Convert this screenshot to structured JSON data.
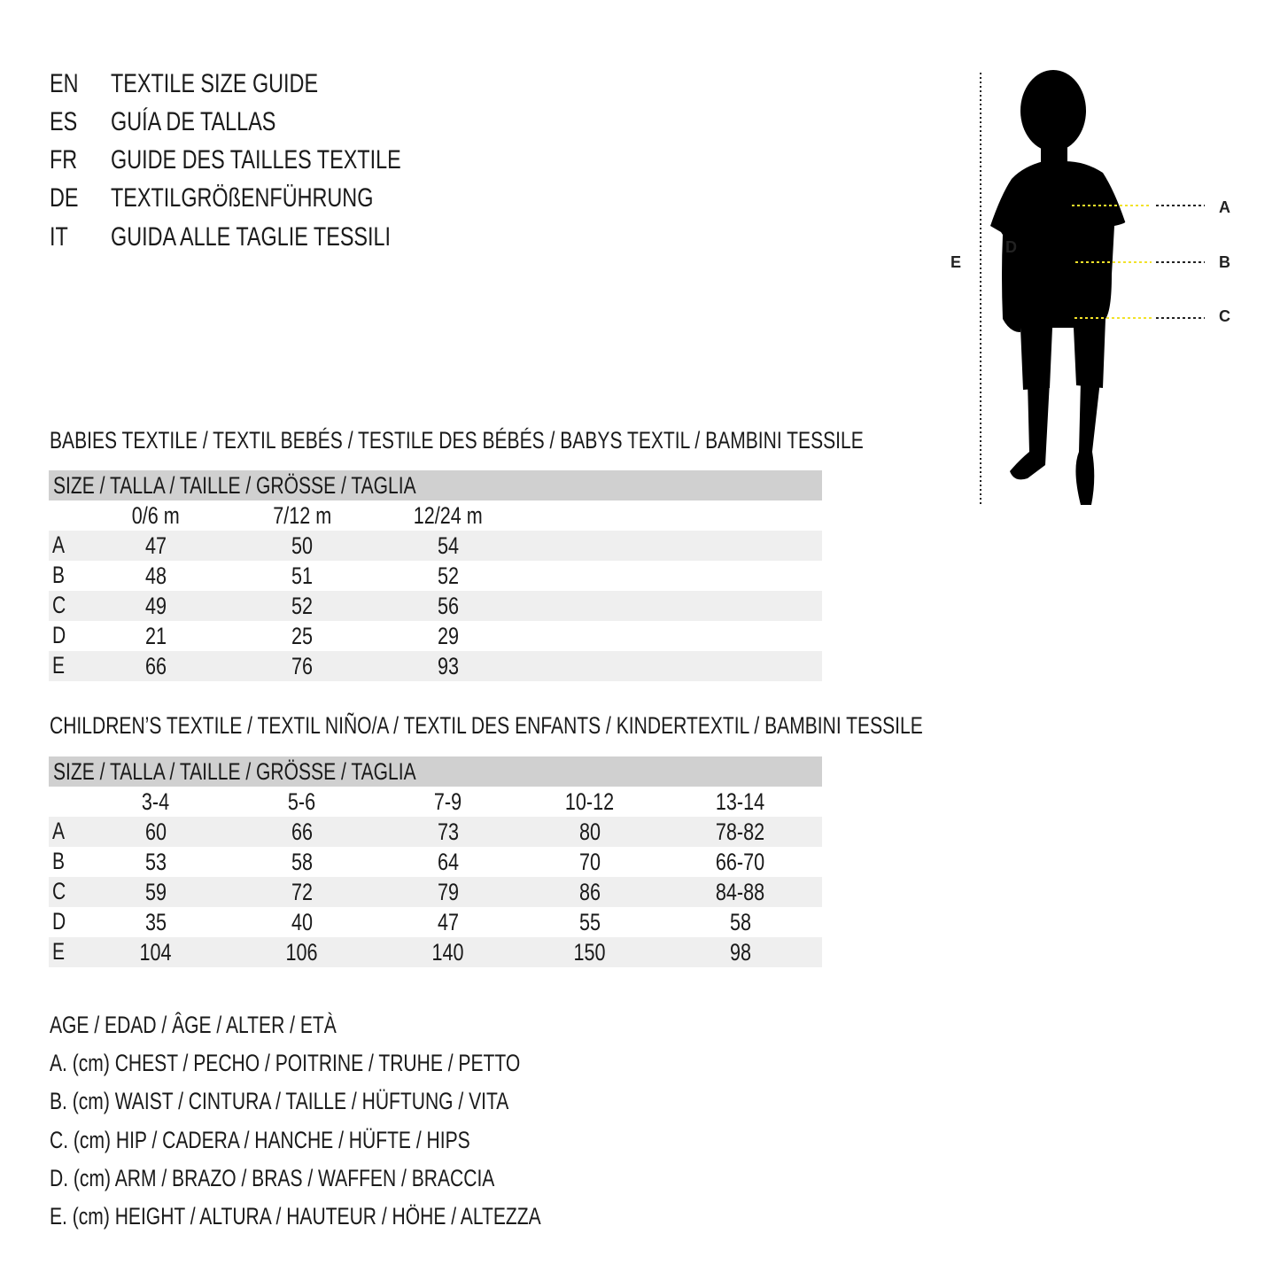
{
  "titles": [
    {
      "code": "EN",
      "text": "TEXTILE SIZE GUIDE"
    },
    {
      "code": "ES",
      "text": "GUÍA DE TALLAS"
    },
    {
      "code": "FR",
      "text": "GUIDE DES TAILLES TEXTILE"
    },
    {
      "code": "DE",
      "text": "TEXTILGRÖßENFÜHRUNG"
    },
    {
      "code": "IT",
      "text": "GUIDA ALLE TAGLIE TESSILI"
    }
  ],
  "figure": {
    "labels": {
      "A": "A",
      "B": "B",
      "C": "C",
      "D": "D",
      "E": "E"
    },
    "accent_color": "#f2e22a"
  },
  "babies": {
    "title": "BABIES TEXTILE / TEXTIL BEBÉS / TESTILE DES BÉBÉS / BABYS TEXTIL / BAMBINI TESSILE",
    "header": "SIZE / TALLA / TAILLE / GRÖSSE / TAGLIA",
    "columns": [
      "0/6 m",
      "7/12 m",
      "12/24 m"
    ],
    "rows": [
      {
        "label": "A",
        "values": [
          "47",
          "50",
          "54"
        ]
      },
      {
        "label": "B",
        "values": [
          "48",
          "51",
          "52"
        ]
      },
      {
        "label": "C",
        "values": [
          "49",
          "52",
          "56"
        ]
      },
      {
        "label": "D",
        "values": [
          "21",
          "25",
          "29"
        ]
      },
      {
        "label": "E",
        "values": [
          "66",
          "76",
          "93"
        ]
      }
    ]
  },
  "children": {
    "title": "CHILDREN’S TEXTILE / TEXTIL NIÑO/A / TEXTIL DES ENFANTS / KINDERTEXTIL / BAMBINI TESSILE",
    "header": "SIZE / TALLA / TAILLE / GRÖSSE / TAGLIA",
    "columns": [
      "3-4",
      "5-6",
      "7-9",
      "10-12",
      "13-14"
    ],
    "rows": [
      {
        "label": "A",
        "values": [
          "60",
          "66",
          "73",
          "80",
          "78-82"
        ]
      },
      {
        "label": "B",
        "values": [
          "53",
          "58",
          "64",
          "70",
          "66-70"
        ]
      },
      {
        "label": "C",
        "values": [
          "59",
          "72",
          "79",
          "86",
          "84-88"
        ]
      },
      {
        "label": "D",
        "values": [
          "35",
          "40",
          "47",
          "55",
          "58"
        ]
      },
      {
        "label": "E",
        "values": [
          "104",
          "106",
          "140",
          "150",
          "98"
        ]
      }
    ]
  },
  "legend": [
    "AGE / EDAD / ÂGE / ALTER / ETÀ",
    "A. (cm) CHEST / PECHO / POITRINE / TRUHE / PETTO",
    "B. (cm) WAIST / CINTURA / TAILLE / HÜFTUNG / VITA",
    "C. (cm) HIP / CADERA / HANCHE / HÜFTE / HIPS",
    "D. (cm) ARM / BRAZO / BRAS / WAFFEN / BRACCIA",
    "E. (cm) HEIGHT / ALTURA / HAUTEUR / HÖHE / ALTEZZA"
  ]
}
